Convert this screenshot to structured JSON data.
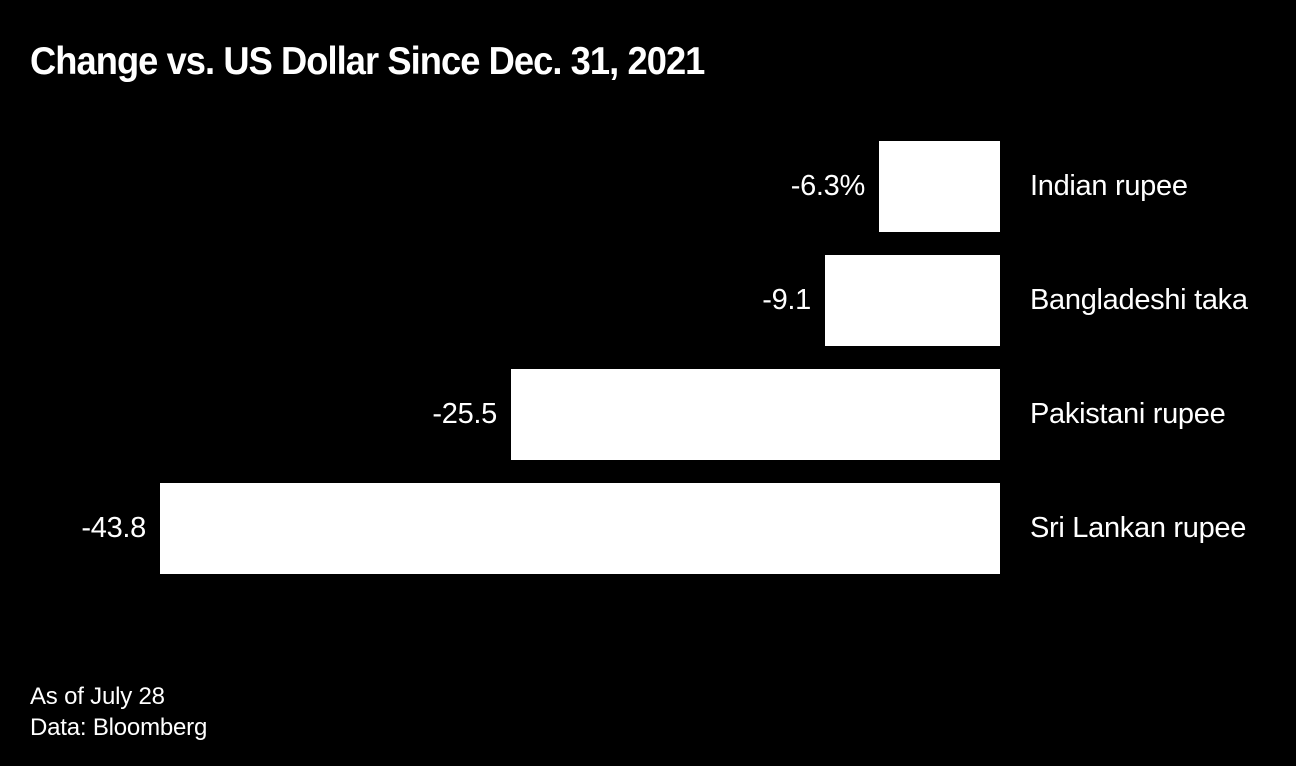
{
  "chart_data": {
    "type": "bar",
    "orientation": "horizontal",
    "title": "Change vs. US Dollar Since Dec. 31, 2021",
    "xlabel": "",
    "ylabel": "",
    "unit": "%",
    "xlim": [
      -45,
      0
    ],
    "grid": false,
    "legend": false,
    "bar_color": "#ffffff",
    "background_color": "#000000",
    "text_color": "#ffffff",
    "categories": [
      "Indian rupee",
      "Bangladeshi taka",
      "Pakistani rupee",
      "Sri Lankan rupee"
    ],
    "values": [
      -6.3,
      -9.1,
      -25.5,
      -43.8
    ],
    "value_labels": [
      "-6.3%",
      "-9.1",
      "-25.5",
      "-43.8"
    ],
    "rows": [
      {
        "category": "Indian rupee",
        "value": -6.3,
        "value_label": "-6.3%"
      },
      {
        "category": "Bangladeshi taka",
        "value": -9.1,
        "value_label": "-9.1"
      },
      {
        "category": "Pakistani rupee",
        "value": -25.5,
        "value_label": "-25.5"
      },
      {
        "category": "Sri Lankan rupee",
        "value": -43.8,
        "value_label": "-43.8"
      }
    ]
  },
  "footer": {
    "as_of": "As of July 28",
    "source": "Data: Bloomberg"
  }
}
